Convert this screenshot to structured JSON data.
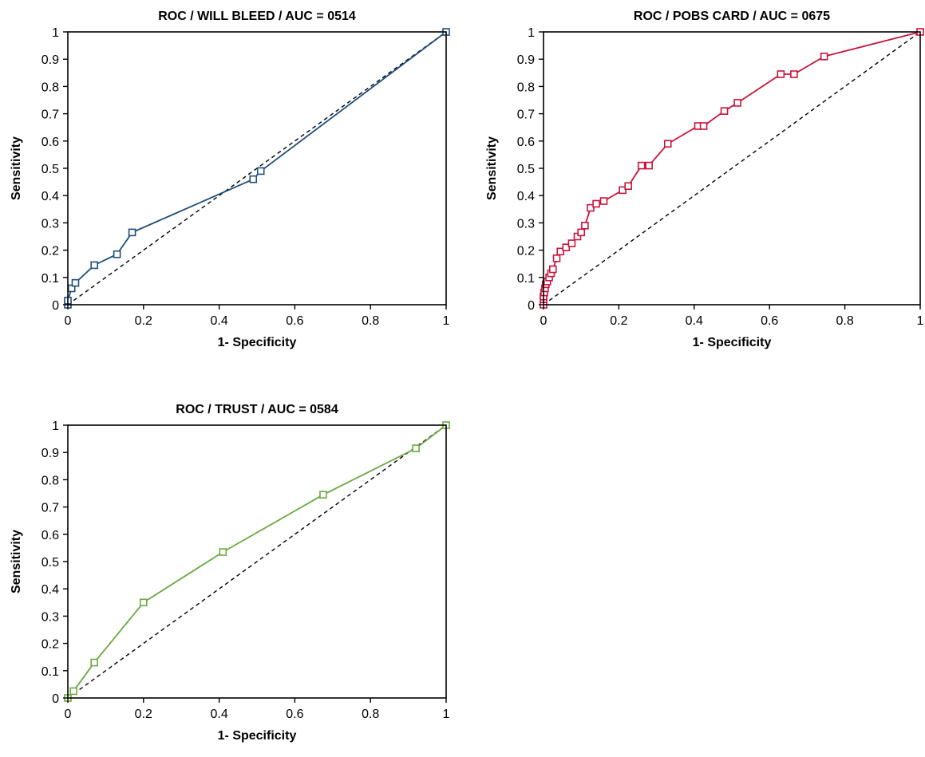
{
  "chart_data": [
    {
      "type": "line",
      "title": "ROC / WILL BLEED / AUC = 0514",
      "xlabel": "1- Specificity",
      "ylabel": "Sensitivity",
      "xlim": [
        0,
        1
      ],
      "ylim": [
        0,
        1
      ],
      "x_ticks": [
        "0",
        "0.2",
        "0.4",
        "0.6",
        "0.8",
        "1"
      ],
      "y_ticks": [
        "0",
        "0.1",
        "0.2",
        "0.3",
        "0.4",
        "0.5",
        "0.6",
        "0.7",
        "0.8",
        "0.9",
        "1"
      ],
      "grid": false,
      "reference_line": "diagonal",
      "color": "#1f4e79",
      "marker": "hollow-square",
      "series": [
        {
          "x": [
            0,
            0,
            0.01,
            0.02,
            0.07,
            0.13,
            0.17,
            0.49,
            0.51,
            1
          ],
          "y": [
            0,
            0.015,
            0.06,
            0.08,
            0.145,
            0.185,
            0.265,
            0.46,
            0.49,
            1
          ]
        }
      ]
    },
    {
      "type": "line",
      "title": "ROC / POBS CARD / AUC = 0675",
      "xlabel": "1- Specificity",
      "ylabel": "Sensitivity",
      "xlim": [
        0,
        1
      ],
      "ylim": [
        0,
        1
      ],
      "x_ticks": [
        "0",
        "0.2",
        "0.4",
        "0.6",
        "0.8",
        "1"
      ],
      "y_ticks": [
        "0",
        "0.1",
        "0.2",
        "0.3",
        "0.4",
        "0.5",
        "0.6",
        "0.7",
        "0.8",
        "0.9",
        "1"
      ],
      "grid": false,
      "reference_line": "diagonal",
      "color": "#c8143c",
      "marker": "hollow-square",
      "series": [
        {
          "x": [
            0,
            0,
            0,
            0.002,
            0.004,
            0.006,
            0.01,
            0.015,
            0.02,
            0.025,
            0.035,
            0.045,
            0.06,
            0.075,
            0.09,
            0.1,
            0.11,
            0.125,
            0.14,
            0.16,
            0.21,
            0.225,
            0.26,
            0.28,
            0.33,
            0.41,
            0.425,
            0.48,
            0.515,
            0.63,
            0.665,
            0.745,
            1
          ],
          "y": [
            0,
            0.02,
            0.03,
            0.045,
            0.06,
            0.075,
            0.085,
            0.1,
            0.115,
            0.13,
            0.17,
            0.195,
            0.21,
            0.225,
            0.25,
            0.265,
            0.29,
            0.355,
            0.37,
            0.38,
            0.42,
            0.435,
            0.51,
            0.51,
            0.59,
            0.655,
            0.655,
            0.71,
            0.74,
            0.845,
            0.845,
            0.91,
            1
          ]
        }
      ]
    },
    {
      "type": "line",
      "title": "ROC / TRUST / AUC = 0584",
      "xlabel": "1- Specificity",
      "ylabel": "Sensitivity",
      "xlim": [
        0,
        1
      ],
      "ylim": [
        0,
        1
      ],
      "x_ticks": [
        "0",
        "0.2",
        "0.4",
        "0.6",
        "0.8",
        "1"
      ],
      "y_ticks": [
        "0",
        "0.1",
        "0.2",
        "0.3",
        "0.4",
        "0.5",
        "0.6",
        "0.7",
        "0.8",
        "0.9",
        "1"
      ],
      "grid": false,
      "reference_line": "diagonal",
      "color": "#6aa842",
      "marker": "hollow-square",
      "series": [
        {
          "x": [
            0,
            0.015,
            0.07,
            0.2,
            0.41,
            0.675,
            0.92,
            1
          ],
          "y": [
            0,
            0.025,
            0.13,
            0.35,
            0.535,
            0.745,
            0.915,
            1
          ]
        }
      ]
    }
  ]
}
